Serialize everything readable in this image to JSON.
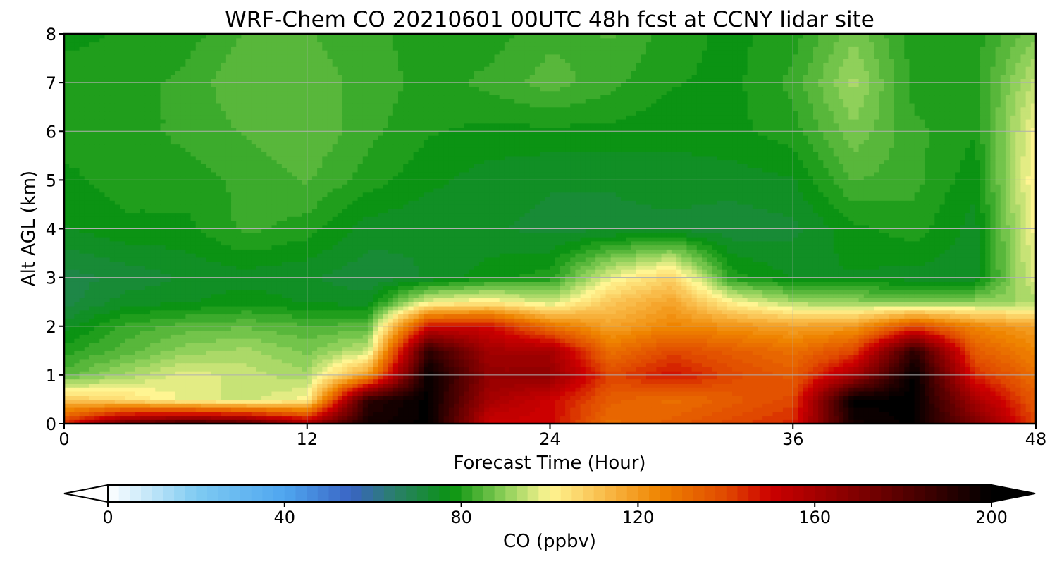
{
  "chart_data": {
    "type": "heatmap",
    "title": "WRF-Chem CO  20210601 00UTC 48h fcst at CCNY lidar site",
    "xlabel": "Forecast Time (Hour)",
    "ylabel": "Alt AGL (km)",
    "xlim": [
      0,
      48
    ],
    "ylim": [
      0,
      8
    ],
    "xticks": [
      0,
      12,
      24,
      36,
      48
    ],
    "yticks": [
      0,
      1,
      2,
      3,
      4,
      5,
      6,
      7,
      8
    ],
    "grid": true,
    "colorbar": {
      "label": "CO  (ppbv)",
      "range": [
        0,
        200
      ],
      "ticks": [
        0,
        40,
        80,
        120,
        160,
        200
      ],
      "extend": "both",
      "orientation": "horizontal",
      "stops": [
        {
          "value": 0,
          "color": "#ffffff"
        },
        {
          "value": 20,
          "color": "#7fcbf2"
        },
        {
          "value": 40,
          "color": "#4fa6f0"
        },
        {
          "value": 55,
          "color": "#3a64c4"
        },
        {
          "value": 65,
          "color": "#2a7f6a"
        },
        {
          "value": 78,
          "color": "#0a9410"
        },
        {
          "value": 90,
          "color": "#8fd05a"
        },
        {
          "value": 100,
          "color": "#fff592"
        },
        {
          "value": 112,
          "color": "#f9bd4c"
        },
        {
          "value": 125,
          "color": "#ef8400"
        },
        {
          "value": 140,
          "color": "#e04800"
        },
        {
          "value": 150,
          "color": "#cc0000"
        },
        {
          "value": 175,
          "color": "#6b0000"
        },
        {
          "value": 200,
          "color": "#000000"
        }
      ]
    },
    "x_hours": [
      0,
      3,
      6,
      9,
      12,
      15,
      18,
      21,
      24,
      27,
      30,
      33,
      36,
      39,
      42,
      45,
      48
    ],
    "y_km": [
      0,
      0.5,
      1,
      1.5,
      2,
      2.5,
      3,
      4,
      5,
      6,
      7,
      8
    ],
    "values": [
      [
        145,
        175,
        185,
        180,
        160,
        195,
        200,
        150,
        150,
        130,
        135,
        140,
        145,
        195,
        200,
        170,
        140
      ],
      [
        110,
        105,
        98,
        95,
        100,
        190,
        200,
        160,
        150,
        135,
        130,
        135,
        140,
        200,
        200,
        160,
        135
      ],
      [
        85,
        92,
        98,
        95,
        92,
        120,
        200,
        165,
        165,
        140,
        148,
        140,
        135,
        160,
        200,
        145,
        130
      ],
      [
        80,
        85,
        90,
        92,
        88,
        95,
        190,
        160,
        160,
        130,
        140,
        135,
        130,
        140,
        190,
        135,
        125
      ],
      [
        75,
        82,
        85,
        86,
        84,
        85,
        150,
        150,
        130,
        118,
        125,
        122,
        118,
        120,
        140,
        125,
        118
      ],
      [
        70,
        75,
        76,
        78,
        76,
        75,
        98,
        102,
        95,
        110,
        118,
        100,
        92,
        90,
        88,
        90,
        92
      ],
      [
        70,
        72,
        74,
        75,
        74,
        72,
        74,
        78,
        80,
        98,
        108,
        80,
        76,
        76,
        75,
        75,
        98
      ],
      [
        76,
        78,
        78,
        82,
        80,
        75,
        74,
        74,
        73,
        73,
        73,
        72,
        73,
        78,
        80,
        75,
        100
      ],
      [
        78,
        80,
        80,
        82,
        84,
        80,
        77,
        75,
        74,
        74,
        75,
        75,
        76,
        84,
        82,
        77,
        102
      ],
      [
        80,
        80,
        82,
        84,
        86,
        82,
        79,
        78,
        78,
        78,
        77,
        78,
        80,
        88,
        82,
        79,
        100
      ],
      [
        80,
        80,
        82,
        86,
        85,
        83,
        80,
        82,
        85,
        82,
        79,
        78,
        82,
        92,
        80,
        80,
        95
      ],
      [
        78,
        79,
        80,
        84,
        84,
        82,
        80,
        80,
        83,
        84,
        80,
        78,
        80,
        88,
        80,
        80,
        88
      ]
    ]
  }
}
